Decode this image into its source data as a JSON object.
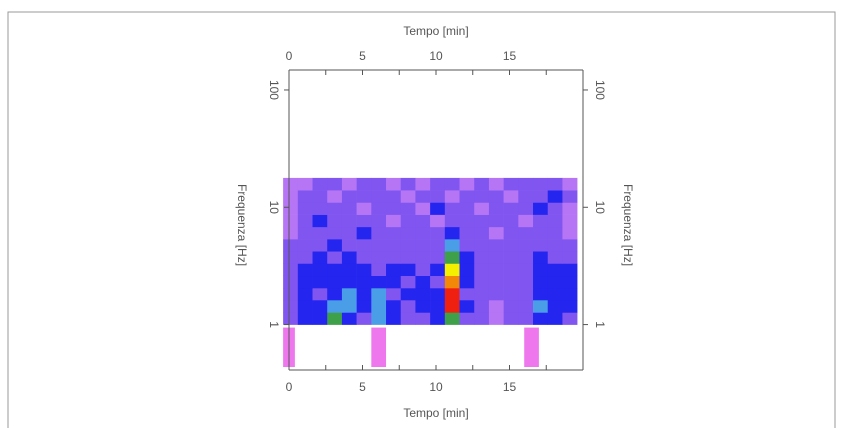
{
  "chart_data": {
    "type": "heatmap",
    "xlabel": "Tempo [min]",
    "ylabel": "Frequenza [Hz]",
    "xlim": [
      0,
      20
    ],
    "xticks": [
      0,
      5,
      10,
      15
    ],
    "xminorticks": [
      2.5,
      7.5,
      12.5,
      17.5
    ],
    "ylim": [
      0.41,
      148
    ],
    "yticks": [
      1,
      10,
      100
    ],
    "log_y": true,
    "x_bins": [
      -0.4,
      0.6,
      1.6,
      2.6,
      3.6,
      4.6,
      5.6,
      6.6,
      7.6,
      8.6,
      9.6,
      10.6,
      11.6,
      12.6,
      13.6,
      14.6,
      15.6,
      16.6,
      17.6,
      18.6,
      19.6
    ],
    "y_bins": [
      1,
      1.27,
      1.62,
      2.05,
      2.61,
      3.32,
      4.22,
      5.36,
      6.81,
      8.66,
      11,
      14,
      17.8
    ],
    "zlim": [
      0,
      6
    ],
    "colormap": [
      "#b575f5",
      "#8055f0",
      "#2525f0",
      "#4a9ee8",
      "#3ea048",
      "#f5f000",
      "#f02010"
    ],
    "z": [
      [
        1,
        2,
        2,
        4,
        2,
        1,
        3,
        2,
        1,
        1,
        2,
        4,
        1,
        1,
        0,
        1,
        1,
        2,
        2,
        1
      ],
      [
        1,
        2,
        2,
        3,
        3,
        2,
        3,
        2,
        1,
        2,
        2,
        6,
        2,
        1,
        0,
        1,
        1,
        3,
        2,
        2
      ],
      [
        1,
        2,
        1,
        2,
        3,
        2,
        3,
        1,
        2,
        2,
        2,
        6,
        1,
        1,
        1,
        1,
        1,
        2,
        2,
        2
      ],
      [
        1,
        2,
        2,
        2,
        2,
        2,
        2,
        2,
        1,
        2,
        1,
        5.5,
        2,
        1,
        1,
        1,
        1,
        2,
        2,
        2
      ],
      [
        1,
        2,
        2,
        2,
        2,
        2,
        1,
        2,
        2,
        1,
        2,
        5,
        2,
        1,
        1,
        1,
        1,
        2,
        2,
        2
      ],
      [
        1,
        1,
        2,
        1,
        2,
        1,
        1,
        1,
        1,
        1,
        1,
        4,
        2,
        1,
        1,
        1,
        1,
        2,
        1,
        1
      ],
      [
        1,
        1,
        1,
        2,
        1,
        1,
        1,
        1,
        1,
        1,
        1,
        3,
        1,
        1,
        1,
        1,
        1,
        1,
        1,
        1
      ],
      [
        0,
        1,
        1,
        1,
        1,
        2,
        1,
        1,
        1,
        1,
        1,
        2,
        1,
        1,
        0,
        1,
        1,
        1,
        1,
        0
      ],
      [
        0,
        1,
        2,
        1,
        1,
        1,
        1,
        0,
        1,
        1,
        0,
        1,
        1,
        1,
        1,
        1,
        0,
        1,
        1,
        0
      ],
      [
        0,
        1,
        1,
        1,
        1,
        0,
        1,
        1,
        1,
        0,
        2,
        1,
        1,
        0,
        1,
        1,
        1,
        2,
        1,
        0
      ],
      [
        0,
        1,
        1,
        0,
        1,
        1,
        1,
        1,
        0,
        1,
        1,
        0,
        1,
        1,
        1,
        0,
        1,
        1,
        2,
        1
      ],
      [
        0,
        0,
        1,
        1,
        0,
        1,
        1,
        0,
        1,
        0,
        1,
        1,
        0,
        1,
        0,
        1,
        1,
        1,
        1,
        0
      ]
    ],
    "events": [
      [
        -0.4,
        0.4
      ],
      [
        5.6,
        6.6
      ],
      [
        16,
        17
      ]
    ],
    "event_color": "#ee77ee"
  }
}
